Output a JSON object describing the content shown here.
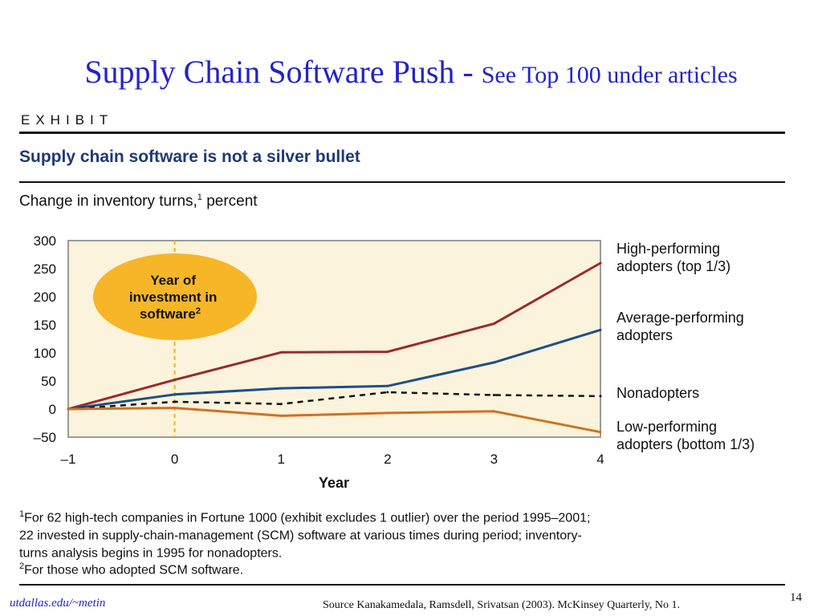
{
  "slide": {
    "title_main": "Supply Chain Software Push - ",
    "title_sub": "See Top 100 under articles",
    "footer_left": "utdallas.edu/~metin",
    "source": "Source Kanakamedala,  Ramsdell, Srivatsan (2003).  McKinsey Quarterly, No 1.",
    "page_number": "14"
  },
  "exhibit": {
    "label": "EXHIBIT",
    "title": "Supply chain software is not a silver bullet",
    "subtitle_pre": "Change in inventory turns,",
    "subtitle_sup": "1",
    "subtitle_post": " percent",
    "callout_lines": [
      "Year of",
      "investment in",
      "software"
    ],
    "callout_sup": "2",
    "footnotes": [
      {
        "mark": "1",
        "text": "For 62 high-tech companies in Fortune 1000 (exhibit excludes 1 outlier) over the period 1995–2001;"
      },
      {
        "mark": "",
        "text": "22 invested in supply-chain-management (SCM) software at various times during period; inventory-"
      },
      {
        "mark": "",
        "text": "turns analysis begins in 1995 for nonadopters."
      },
      {
        "mark": "2",
        "text": "For those who adopted SCM software."
      }
    ]
  },
  "chart_data": {
    "type": "line",
    "title": "Supply chain software is not a silver bullet",
    "subtitle": "Change in inventory turns,1 percent",
    "xlabel": "Year",
    "ylabel": "",
    "x": [
      -1,
      0,
      1,
      2,
      3,
      4
    ],
    "x_tick_labels": [
      "–1",
      "0",
      "1",
      "2",
      "3",
      "4"
    ],
    "y_ticks": [
      300,
      250,
      200,
      150,
      100,
      50,
      0,
      -50
    ],
    "y_tick_labels": [
      "300",
      "250",
      "200",
      "150",
      "100",
      "50",
      "0",
      "–50"
    ],
    "xlim": [
      -1,
      4
    ],
    "ylim": [
      -50,
      300
    ],
    "grid": false,
    "legend": "right",
    "highlight_x": 0,
    "plot_bg": "#fbf3dc",
    "series": [
      {
        "name": "High-performing adopters (top 1/3)",
        "label_lines": [
          "High-performing",
          "adopters (top 1/3)"
        ],
        "values": [
          0,
          52,
          101,
          102,
          152,
          260
        ],
        "color": "#9b2a2a",
        "dash": false
      },
      {
        "name": "Average-performing adopters",
        "label_lines": [
          "Average-performing",
          "adopters"
        ],
        "values": [
          0,
          26,
          37,
          41,
          83,
          141
        ],
        "color": "#1f4f86",
        "dash": false
      },
      {
        "name": "Nonadopters",
        "label_lines": [
          "Nonadopters"
        ],
        "values": [
          0,
          13,
          9,
          30,
          25,
          23
        ],
        "color": "#111111",
        "dash": true
      },
      {
        "name": "Low-performing adopters (bottom 1/3)",
        "label_lines": [
          "Low-performing",
          "adopters (bottom 1/3)"
        ],
        "values": [
          0,
          2,
          -12,
          -7,
          -4,
          -41
        ],
        "color": "#cf7223",
        "dash": false
      }
    ]
  }
}
